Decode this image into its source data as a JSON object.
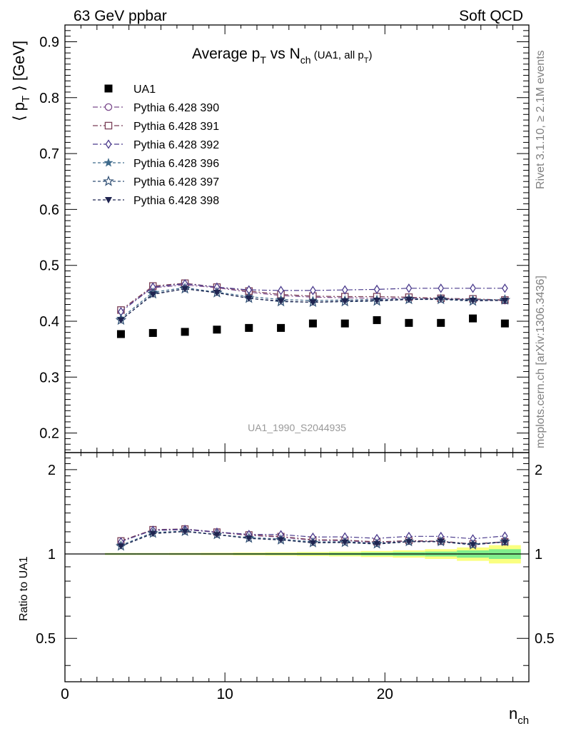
{
  "header": {
    "left": "63 GeV ppbar",
    "right": "Soft QCD"
  },
  "side_labels": {
    "rivet": "Rivet 3.1.10, ≥ 2.1M events",
    "mcplots": "mcplots.cern.ch [arXiv:1306.3436]"
  },
  "chart_data": {
    "type": "scatter",
    "title": "Average p_T vs N_ch (UA1, all p_T)",
    "title_parts": {
      "a": "Average p",
      "a_sub": "T",
      "b": " vs N",
      "b_sub": "ch",
      "c": " (UA1, all p",
      "c_sub": "T",
      "d": ")"
    },
    "watermark": "UA1_1990_S2044935",
    "xlabel": "n_ch",
    "xlabel_parts": {
      "main": "n",
      "sub": "ch"
    },
    "ylabel": "⟨ p_T ⟩ [GeV]",
    "ylabel_parts": {
      "a": "⟨ p",
      "sub": "T",
      "b": " ⟩ [GeV]"
    },
    "ratio_ylabel": "Ratio to UA1",
    "xlim": [
      0,
      29
    ],
    "ylim": [
      0.165,
      0.93
    ],
    "ratio_ylim": [
      0.35,
      2.3
    ],
    "x_ticks": [
      0,
      10,
      20
    ],
    "y_ticks": [
      0.2,
      0.3,
      0.4,
      0.5,
      0.6,
      0.7,
      0.8,
      0.9
    ],
    "y_tick_labels": [
      "0.2",
      "0.3",
      "0.4",
      "0.5",
      "0.6",
      "0.7",
      "0.8",
      "0.9"
    ],
    "ratio_ticks": [
      0.5,
      1,
      2
    ],
    "ratio_tick_labels": [
      "0.5",
      "1",
      "2"
    ],
    "legend_position": "top-left",
    "x": [
      3.5,
      5.5,
      7.5,
      9.5,
      11.5,
      13.5,
      15.5,
      17.5,
      19.5,
      21.5,
      23.5,
      25.5,
      27.5
    ],
    "data": {
      "name": "UA1",
      "values": [
        0.377,
        0.379,
        0.381,
        0.385,
        0.388,
        0.388,
        0.396,
        0.396,
        0.402,
        0.397,
        0.397,
        0.405,
        0.396
      ],
      "color": "#000000"
    },
    "series": [
      {
        "name": "Pythia 6.428 390",
        "color": "#7b4a8c",
        "dash": "7,3,2,3",
        "marker": "circle-open",
        "values": [
          0.42,
          0.46,
          0.465,
          0.46,
          0.452,
          0.446,
          0.443,
          0.442,
          0.441,
          0.441,
          0.44,
          0.439,
          0.437
        ]
      },
      {
        "name": "Pythia 6.428 391",
        "color": "#7a3f57",
        "dash": "7,3,2,3",
        "marker": "square-open",
        "values": [
          0.42,
          0.463,
          0.468,
          0.461,
          0.454,
          0.448,
          0.445,
          0.444,
          0.444,
          0.443,
          0.441,
          0.44,
          0.438
        ]
      },
      {
        "name": "Pythia 6.428 392",
        "color": "#4a3a8c",
        "dash": "7,3,2,3",
        "marker": "diamond-open",
        "values": [
          0.417,
          0.461,
          0.467,
          0.461,
          0.456,
          0.455,
          0.455,
          0.456,
          0.457,
          0.459,
          0.459,
          0.459,
          0.459
        ]
      },
      {
        "name": "Pythia 6.428 396",
        "color": "#3f6b8c",
        "dash": "4,3",
        "marker": "star-filled",
        "values": [
          0.405,
          0.452,
          0.46,
          0.452,
          0.444,
          0.439,
          0.437,
          0.438,
          0.439,
          0.44,
          0.44,
          0.439,
          0.438
        ]
      },
      {
        "name": "Pythia 6.428 397",
        "color": "#2f4e73",
        "dash": "4,3",
        "marker": "star-open",
        "values": [
          0.402,
          0.449,
          0.458,
          0.451,
          0.441,
          0.435,
          0.434,
          0.435,
          0.436,
          0.439,
          0.439,
          0.436,
          0.438
        ]
      },
      {
        "name": "Pythia 6.428 398",
        "color": "#1f2450",
        "dash": "4,3",
        "marker": "triangle-down-filled",
        "values": [
          0.402,
          0.448,
          0.458,
          0.451,
          0.441,
          0.436,
          0.434,
          0.436,
          0.437,
          0.439,
          0.44,
          0.437,
          0.437
        ]
      }
    ],
    "ratio_band_inner": [
      0.005,
      0.005,
      0.005,
      0.005,
      0.006,
      0.007,
      0.008,
      0.01,
      0.013,
      0.016,
      0.02,
      0.03,
      0.04
    ],
    "ratio_band_outer": [
      0.008,
      0.008,
      0.009,
      0.01,
      0.012,
      0.014,
      0.017,
      0.02,
      0.025,
      0.03,
      0.04,
      0.055,
      0.075
    ],
    "band_colors": {
      "inner": "#80ee8c",
      "outer": "#faff80"
    }
  }
}
